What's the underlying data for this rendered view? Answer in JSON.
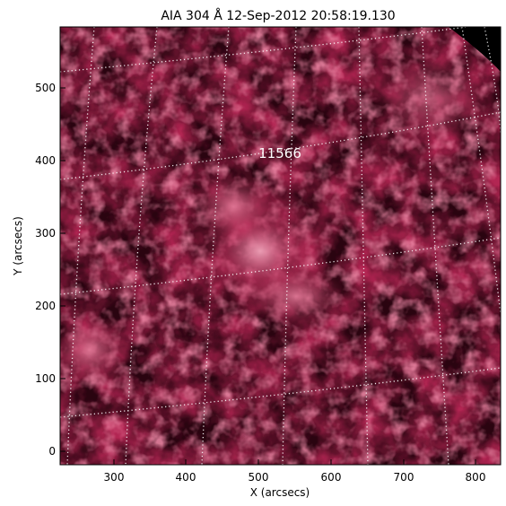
{
  "title": "AIA 304 Å 12-Sep-2012 20:58:19.130",
  "xlabel": "X (arcsecs)",
  "ylabel": "Y (arcsecs)",
  "x_ticks": [
    "300",
    "400",
    "500",
    "600",
    "700",
    "800"
  ],
  "y_ticks": [
    "0",
    "100",
    "200",
    "300",
    "400",
    "500"
  ],
  "region_label": "11566",
  "colors": {
    "background": "#000000",
    "plasma_dark": "#3a0512",
    "plasma_mid": "#8a1538",
    "plasma_bright": "#e87a99",
    "grid": "#ffffff"
  },
  "image": {
    "wavelength": "304 Å",
    "instrument": "AIA",
    "grid": "dotted heliographic grid"
  }
}
